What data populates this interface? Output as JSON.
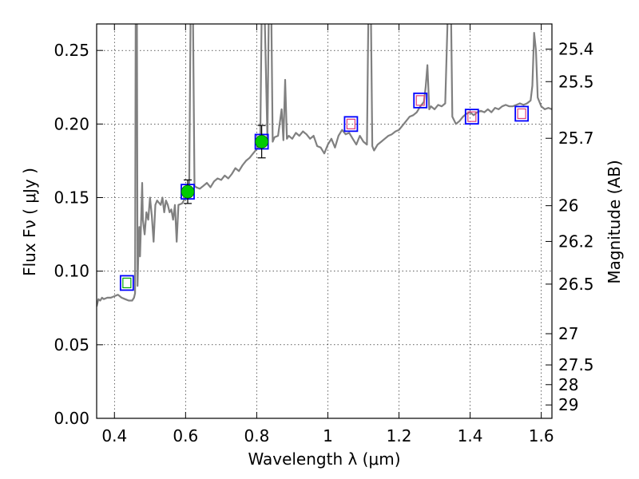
{
  "chart_data": {
    "type": "scatter",
    "title": "",
    "xlabel": "Wavelength  λ (μm)",
    "ylabel": "Flux  Fν  ( μJy )",
    "ylabel_right": "Magnitude (AB)",
    "xlim": [
      0.35,
      1.63
    ],
    "ylim": [
      0.0,
      0.268
    ],
    "grid": true,
    "x_ticks": [
      {
        "v": 0.4,
        "label": "0.4"
      },
      {
        "v": 0.6,
        "label": "0.6"
      },
      {
        "v": 0.8,
        "label": "0.8"
      },
      {
        "v": 1.0,
        "label": "1"
      },
      {
        "v": 1.2,
        "label": "1.2"
      },
      {
        "v": 1.4,
        "label": "1.4"
      },
      {
        "v": 1.6,
        "label": "1.6"
      }
    ],
    "y_ticks": [
      {
        "v": 0.0,
        "label": "0.00"
      },
      {
        "v": 0.05,
        "label": "0.05"
      },
      {
        "v": 0.1,
        "label": "0.10"
      },
      {
        "v": 0.15,
        "label": "0.15"
      },
      {
        "v": 0.2,
        "label": "0.20"
      },
      {
        "v": 0.25,
        "label": "0.25"
      }
    ],
    "right_ticks": [
      {
        "label": "25.4",
        "flux": 0.2509
      },
      {
        "label": "25.5",
        "flux": 0.2288
      },
      {
        "label": "25.7",
        "flux": 0.1903
      },
      {
        "label": "26",
        "flux": 0.1445
      },
      {
        "label": "26.2",
        "flux": 0.1202
      },
      {
        "label": "26.5",
        "flux": 0.0912
      },
      {
        "label": "27",
        "flux": 0.0575
      },
      {
        "label": "27.5",
        "flux": 0.0363
      },
      {
        "label": "28",
        "flux": 0.0229
      },
      {
        "label": "29",
        "flux": 0.0091
      }
    ],
    "spectrum": {
      "color": "#808080",
      "points": [
        [
          0.35,
          0.076
        ],
        [
          0.355,
          0.081
        ],
        [
          0.36,
          0.08
        ],
        [
          0.365,
          0.082
        ],
        [
          0.37,
          0.081
        ],
        [
          0.38,
          0.082
        ],
        [
          0.39,
          0.082
        ],
        [
          0.4,
          0.083
        ],
        [
          0.41,
          0.084
        ],
        [
          0.42,
          0.082
        ],
        [
          0.43,
          0.081
        ],
        [
          0.44,
          0.08
        ],
        [
          0.45,
          0.08
        ],
        [
          0.455,
          0.082
        ],
        [
          0.458,
          0.085
        ],
        [
          0.46,
          0.3
        ],
        [
          0.463,
          0.3
        ],
        [
          0.465,
          0.09
        ],
        [
          0.467,
          0.11
        ],
        [
          0.47,
          0.13
        ],
        [
          0.472,
          0.11
        ],
        [
          0.475,
          0.135
        ],
        [
          0.478,
          0.16
        ],
        [
          0.48,
          0.135
        ],
        [
          0.485,
          0.125
        ],
        [
          0.49,
          0.14
        ],
        [
          0.495,
          0.135
        ],
        [
          0.5,
          0.15
        ],
        [
          0.505,
          0.138
        ],
        [
          0.51,
          0.12
        ],
        [
          0.515,
          0.145
        ],
        [
          0.52,
          0.148
        ],
        [
          0.53,
          0.145
        ],
        [
          0.535,
          0.15
        ],
        [
          0.54,
          0.14
        ],
        [
          0.545,
          0.148
        ],
        [
          0.55,
          0.145
        ],
        [
          0.555,
          0.14
        ],
        [
          0.56,
          0.142
        ],
        [
          0.565,
          0.135
        ],
        [
          0.57,
          0.145
        ],
        [
          0.575,
          0.12
        ],
        [
          0.58,
          0.145
        ],
        [
          0.59,
          0.146
        ],
        [
          0.6,
          0.15
        ],
        [
          0.61,
          0.152
        ],
        [
          0.615,
          0.3
        ],
        [
          0.62,
          0.3
        ],
        [
          0.625,
          0.158
        ],
        [
          0.63,
          0.157
        ],
        [
          0.64,
          0.156
        ],
        [
          0.65,
          0.158
        ],
        [
          0.66,
          0.16
        ],
        [
          0.67,
          0.157
        ],
        [
          0.68,
          0.161
        ],
        [
          0.69,
          0.163
        ],
        [
          0.7,
          0.162
        ],
        [
          0.71,
          0.165
        ],
        [
          0.72,
          0.163
        ],
        [
          0.73,
          0.166
        ],
        [
          0.74,
          0.17
        ],
        [
          0.75,
          0.168
        ],
        [
          0.76,
          0.172
        ],
        [
          0.77,
          0.175
        ],
        [
          0.78,
          0.177
        ],
        [
          0.79,
          0.18
        ],
        [
          0.8,
          0.183
        ],
        [
          0.81,
          0.186
        ],
        [
          0.815,
          0.3
        ],
        [
          0.82,
          0.3
        ],
        [
          0.83,
          0.19
        ],
        [
          0.835,
          0.3
        ],
        [
          0.84,
          0.3
        ],
        [
          0.845,
          0.188
        ],
        [
          0.85,
          0.191
        ],
        [
          0.86,
          0.192
        ],
        [
          0.87,
          0.21
        ],
        [
          0.875,
          0.189
        ],
        [
          0.88,
          0.23
        ],
        [
          0.885,
          0.19
        ],
        [
          0.89,
          0.192
        ],
        [
          0.9,
          0.19
        ],
        [
          0.91,
          0.194
        ],
        [
          0.92,
          0.192
        ],
        [
          0.93,
          0.195
        ],
        [
          0.94,
          0.193
        ],
        [
          0.95,
          0.19
        ],
        [
          0.96,
          0.192
        ],
        [
          0.97,
          0.185
        ],
        [
          0.98,
          0.184
        ],
        [
          0.99,
          0.18
        ],
        [
          1.0,
          0.186
        ],
        [
          1.01,
          0.19
        ],
        [
          1.02,
          0.184
        ],
        [
          1.03,
          0.192
        ],
        [
          1.04,
          0.196
        ],
        [
          1.05,
          0.193
        ],
        [
          1.06,
          0.194
        ],
        [
          1.07,
          0.19
        ],
        [
          1.08,
          0.186
        ],
        [
          1.09,
          0.192
        ],
        [
          1.1,
          0.188
        ],
        [
          1.11,
          0.186
        ],
        [
          1.115,
          0.3
        ],
        [
          1.12,
          0.3
        ],
        [
          1.125,
          0.185
        ],
        [
          1.13,
          0.182
        ],
        [
          1.14,
          0.186
        ],
        [
          1.15,
          0.188
        ],
        [
          1.16,
          0.19
        ],
        [
          1.17,
          0.192
        ],
        [
          1.18,
          0.193
        ],
        [
          1.19,
          0.195
        ],
        [
          1.2,
          0.196
        ],
        [
          1.21,
          0.199
        ],
        [
          1.22,
          0.202
        ],
        [
          1.23,
          0.205
        ],
        [
          1.24,
          0.206
        ],
        [
          1.25,
          0.208
        ],
        [
          1.26,
          0.212
        ],
        [
          1.27,
          0.215
        ],
        [
          1.275,
          0.225
        ],
        [
          1.28,
          0.24
        ],
        [
          1.285,
          0.21
        ],
        [
          1.29,
          0.212
        ],
        [
          1.3,
          0.21
        ],
        [
          1.31,
          0.213
        ],
        [
          1.32,
          0.212
        ],
        [
          1.33,
          0.214
        ],
        [
          1.34,
          0.3
        ],
        [
          1.345,
          0.3
        ],
        [
          1.35,
          0.205
        ],
        [
          1.36,
          0.2
        ],
        [
          1.37,
          0.202
        ],
        [
          1.38,
          0.205
        ],
        [
          1.39,
          0.207
        ],
        [
          1.4,
          0.208
        ],
        [
          1.41,
          0.206
        ],
        [
          1.42,
          0.208
        ],
        [
          1.43,
          0.209
        ],
        [
          1.44,
          0.208
        ],
        [
          1.45,
          0.21
        ],
        [
          1.46,
          0.208
        ],
        [
          1.47,
          0.211
        ],
        [
          1.48,
          0.21
        ],
        [
          1.49,
          0.212
        ],
        [
          1.5,
          0.213
        ],
        [
          1.51,
          0.212
        ],
        [
          1.52,
          0.212
        ],
        [
          1.53,
          0.213
        ],
        [
          1.54,
          0.214
        ],
        [
          1.55,
          0.213
        ],
        [
          1.56,
          0.214
        ],
        [
          1.57,
          0.216
        ],
        [
          1.575,
          0.226
        ],
        [
          1.58,
          0.262
        ],
        [
          1.585,
          0.25
        ],
        [
          1.59,
          0.218
        ],
        [
          1.6,
          0.212
        ],
        [
          1.61,
          0.21
        ],
        [
          1.62,
          0.211
        ],
        [
          1.63,
          0.21
        ]
      ]
    },
    "model_photometry": [
      {
        "x": 0.435,
        "y": 0.092,
        "outer": "#0000ff",
        "inner": "#00aa00"
      },
      {
        "x": 0.606,
        "y": 0.154,
        "outer": "#0000ff",
        "inner": "#00aa00"
      },
      {
        "x": 0.814,
        "y": 0.188,
        "outer": "#0000ff",
        "inner": "#00aa00"
      },
      {
        "x": 1.065,
        "y": 0.2,
        "outer": "#0000ff",
        "inner": "#e0407a"
      },
      {
        "x": 1.26,
        "y": 0.216,
        "outer": "#0000ff",
        "inner": "#e0407a"
      },
      {
        "x": 1.405,
        "y": 0.205,
        "outer": "#0000ff",
        "inner": "#e0407a"
      },
      {
        "x": 1.545,
        "y": 0.207,
        "outer": "#0000ff",
        "inner": "#e0407a"
      }
    ],
    "observed": {
      "color": "#00cc00",
      "points": [
        {
          "x": 0.606,
          "y": 0.154,
          "err": 0.008
        },
        {
          "x": 0.814,
          "y": 0.188,
          "err": 0.011
        }
      ]
    }
  }
}
